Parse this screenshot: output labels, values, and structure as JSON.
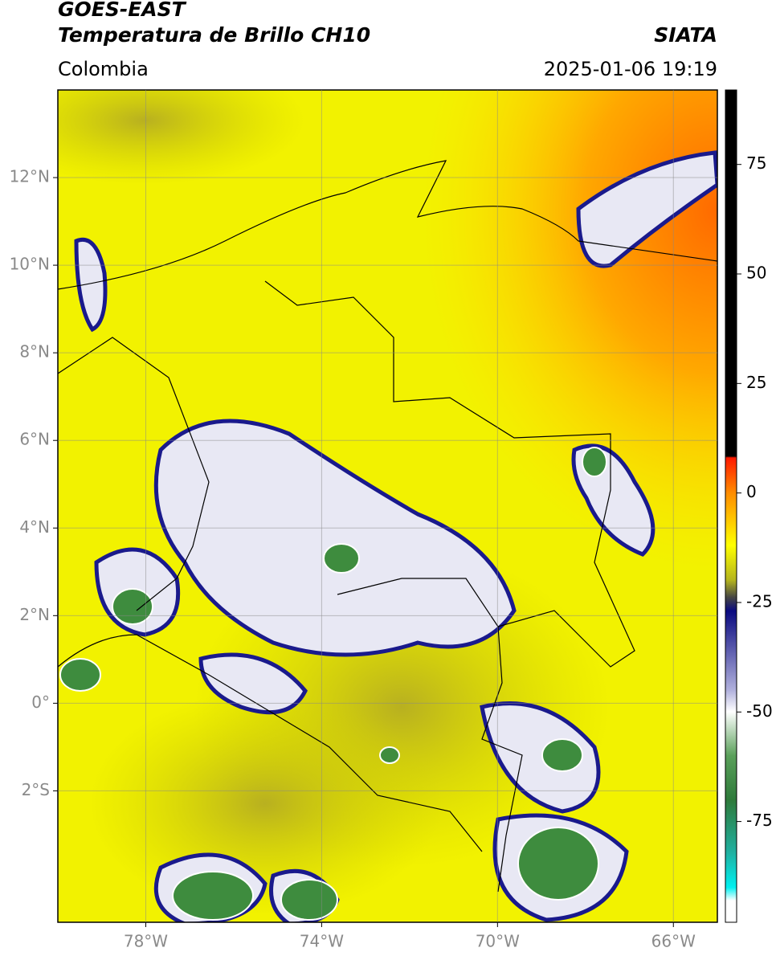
{
  "header": {
    "satellite": "GOES-EAST",
    "product": "Temperatura de Brillo CH10",
    "region": "Colombia",
    "source": "SIATA",
    "datetime": "2025-01-06 19:19"
  },
  "chart_data": {
    "type": "map",
    "xlim": [
      -80,
      -65
    ],
    "ylim": [
      -5,
      14
    ],
    "xticks": [
      {
        "value": -78,
        "label": "78°W"
      },
      {
        "value": -74,
        "label": "74°W"
      },
      {
        "value": -70,
        "label": "70°W"
      },
      {
        "value": -66,
        "label": "66°W"
      }
    ],
    "yticks": [
      {
        "value": -2,
        "label": "2°S"
      },
      {
        "value": 0,
        "label": "0°"
      },
      {
        "value": 2,
        "label": "2°N"
      },
      {
        "value": 4,
        "label": "4°N"
      },
      {
        "value": 6,
        "label": "6°N"
      },
      {
        "value": 8,
        "label": "8°N"
      },
      {
        "value": 10,
        "label": "10°N"
      },
      {
        "value": 12,
        "label": "12°N"
      }
    ],
    "grid": true,
    "colorbar": {
      "lim": [
        -98,
        92
      ],
      "ticks": [
        -75,
        -50,
        -25,
        0,
        25,
        50,
        75
      ]
    }
  }
}
